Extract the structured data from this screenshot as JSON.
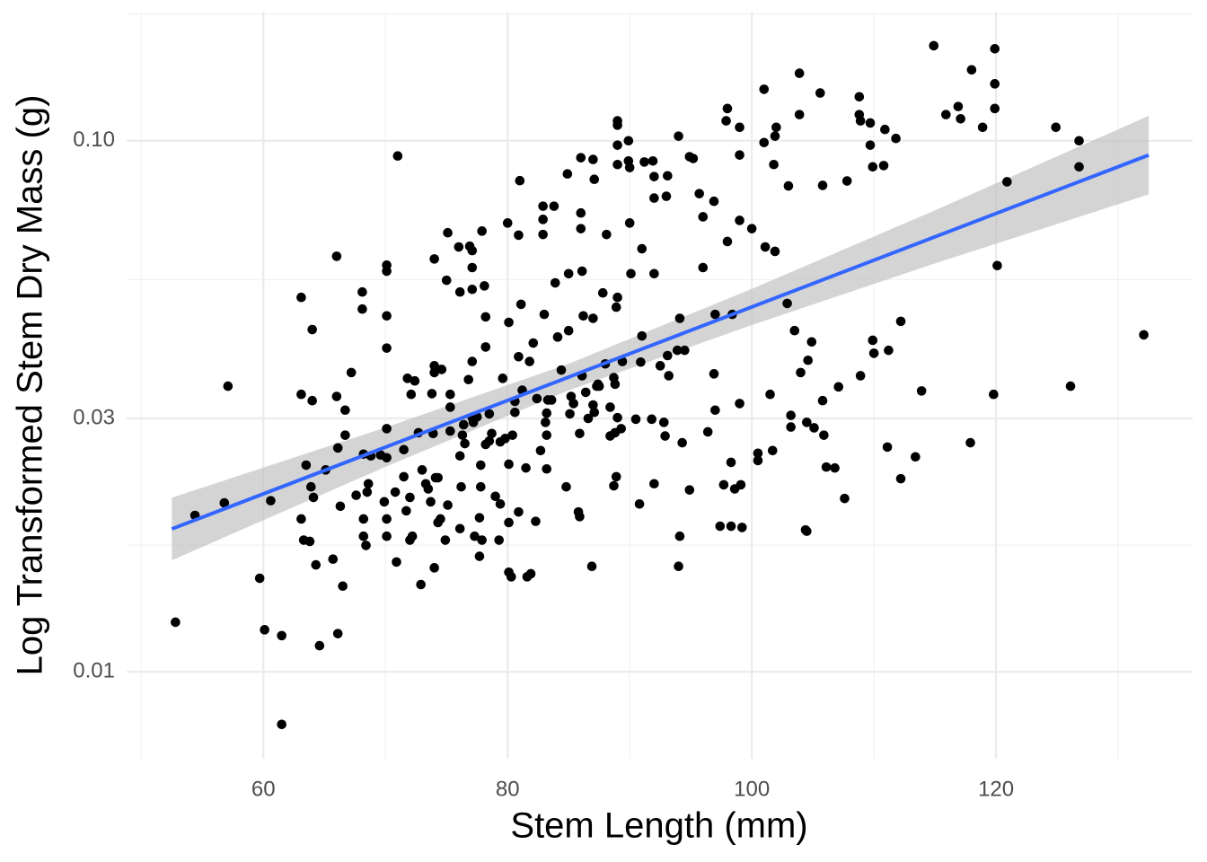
{
  "chart_data": {
    "type": "scatter",
    "xlabel": "Stem Length (mm)",
    "ylabel": "Log Transformed Stem Dry Mass (g)",
    "xlim": [
      48.8,
      136.1
    ],
    "ylim": [
      0.00686,
      0.175
    ],
    "ylog": true,
    "xticks": [
      60,
      80,
      100,
      120
    ],
    "yticks": [
      {
        "value": 0.1,
        "label": "0.10"
      },
      0.03,
      0.01
    ],
    "xminor": [
      50,
      70,
      90,
      110,
      130
    ],
    "yminor": [
      0.01732,
      0.05477,
      0.1732
    ],
    "grid": true,
    "color": "#000000",
    "x": [
      52.8,
      54.4,
      56.8,
      57.1,
      59.7,
      60.1,
      60.6,
      61.5,
      61.5,
      63.1,
      63.1,
      63.1,
      63.3,
      63.5,
      63.8,
      63.9,
      64.0,
      64.0,
      64.1,
      64.3,
      64.6,
      65.1,
      65.7,
      66.0,
      66.0,
      66.1,
      66.1,
      66.3,
      66.5,
      66.7,
      66.7,
      67.2,
      67.6,
      68.1,
      68.1,
      68.2,
      68.2,
      68.2,
      68.4,
      68.5,
      68.6,
      68.8,
      69.6,
      69.9,
      70.1,
      70.1,
      70.1,
      70.1,
      70.1,
      70.1,
      70.1,
      70.1,
      70.8,
      70.9,
      71.0,
      71.5,
      71.5,
      71.7,
      71.8,
      72.0,
      72.0,
      72.1,
      72.2,
      72.4,
      72.7,
      72.9,
      73.0,
      73.3,
      73.5,
      73.7,
      73.8,
      73.9,
      74.0,
      74.0,
      74.0,
      74.0,
      74.1,
      74.3,
      74.3,
      74.5,
      74.6,
      74.9,
      75.0,
      75.1,
      75.1,
      75.3,
      75.3,
      75.3,
      76.0,
      76.1,
      76.1,
      76.1,
      76.2,
      76.3,
      76.4,
      76.5,
      76.8,
      76.9,
      77.1,
      77.1,
      77.1,
      77.1,
      77.1,
      77.2,
      77.3,
      77.5,
      77.7,
      77.7,
      77.8,
      77.8,
      77.9,
      77.9,
      78.1,
      78.2,
      78.2,
      78.2,
      78.5,
      78.5,
      78.7,
      79.0,
      79.3,
      79.4,
      79.4,
      79.6,
      79.8,
      80.0,
      80.1,
      80.1,
      80.1,
      80.1,
      80.3,
      80.4,
      80.6,
      80.6,
      80.9,
      80.9,
      80.9,
      81.0,
      81.1,
      81.2,
      81.5,
      81.6,
      81.8,
      81.9,
      82.1,
      82.3,
      82.4,
      82.7,
      82.9,
      82.9,
      82.9,
      83.0,
      83.1,
      83.2,
      83.2,
      83.2,
      83.3,
      83.6,
      83.8,
      83.9,
      84.1,
      84.4,
      84.8,
      84.9,
      85.0,
      85.0,
      85.1,
      85.2,
      85.4,
      85.8,
      85.9,
      85.9,
      86.0,
      86.0,
      86.0,
      86.1,
      86.1,
      86.2,
      86.4,
      86.6,
      86.9,
      87.0,
      87.0,
      87.0,
      87.1,
      87.1,
      87.3,
      87.4,
      87.5,
      87.8,
      88.0,
      88.1,
      88.4,
      88.4,
      88.7,
      88.7,
      88.8,
      88.8,
      88.9,
      88.9,
      89.0,
      89.0,
      89.0,
      89.0,
      89.0,
      89.0,
      89.3,
      89.4,
      89.9,
      89.9,
      90.0,
      90.0,
      90.1,
      90.5,
      90.8,
      90.9,
      91.0,
      91.0,
      91.2,
      91.8,
      91.9,
      92.0,
      92.0,
      92.0,
      92.0,
      92.5,
      92.8,
      92.9,
      93.0,
      93.1,
      93.1,
      93.2,
      93.9,
      94.0,
      94.0,
      94.1,
      94.1,
      94.3,
      94.5,
      94.9,
      94.9,
      95.2,
      95.7,
      96.0,
      96.0,
      96.4,
      96.9,
      96.9,
      97.0,
      97.0,
      97.4,
      97.7,
      97.9,
      98.0,
      98.0,
      98.3,
      98.3,
      98.4,
      98.6,
      99.0,
      99.0,
      99.0,
      99.0,
      99.1,
      99.2,
      100.0,
      100.5,
      100.5,
      101.0,
      101.0,
      101.1,
      101.5,
      101.7,
      101.8,
      101.9,
      101.9,
      102.0,
      102.9,
      103.0,
      103.2,
      103.2,
      103.5,
      103.9,
      103.9,
      104.0,
      104.4,
      104.5,
      104.5,
      104.6,
      104.9,
      105.1,
      105.6,
      105.8,
      105.8,
      105.9,
      106.1,
      106.8,
      107.1,
      107.6,
      107.8,
      108.8,
      108.8,
      108.9,
      108.9,
      109.7,
      109.7,
      109.9,
      109.9,
      110.0,
      110.8,
      110.9,
      111.1,
      111.2,
      111.8,
      112.2,
      112.2,
      113.4,
      113.9,
      114.9,
      115.9,
      116.9,
      117.1,
      117.9,
      118.0,
      118.9,
      119.8,
      119.9,
      119.9,
      119.9,
      120.1,
      120.9,
      124.9,
      126.1,
      126.8,
      126.8,
      132.1
    ],
    "values": [
      0.0124,
      0.0197,
      0.0208,
      0.0345,
      0.015,
      0.012,
      0.021,
      0.0117,
      0.00796,
      0.0507,
      0.0333,
      0.0194,
      0.0177,
      0.0245,
      0.0176,
      0.0223,
      0.0324,
      0.0441,
      0.0213,
      0.0159,
      0.0112,
      0.024,
      0.0163,
      0.0606,
      0.033,
      0.0118,
      0.0264,
      0.0205,
      0.0145,
      0.0311,
      0.0279,
      0.0366,
      0.0215,
      0.0519,
      0.0482,
      0.0194,
      0.018,
      0.0257,
      0.0173,
      0.0218,
      0.0226,
      0.0255,
      0.0256,
      0.0209,
      0.0583,
      0.0568,
      0.0468,
      0.0407,
      0.0287,
      0.0253,
      0.0194,
      0.018,
      0.0218,
      0.0161,
      0.0936,
      0.0233,
      0.0262,
      0.0201,
      0.0357,
      0.0213,
      0.0177,
      0.0333,
      0.018,
      0.0353,
      0.0282,
      0.0146,
      0.024,
      0.0226,
      0.0221,
      0.0209,
      0.0334,
      0.0281,
      0.0157,
      0.0599,
      0.0366,
      0.0377,
      0.0232,
      0.0191,
      0.0232,
      0.0194,
      0.0371,
      0.0177,
      0.0546,
      0.0671,
      0.0206,
      0.0284,
      0.0315,
      0.0333,
      0.0631,
      0.0519,
      0.0255,
      0.0186,
      0.0223,
      0.0279,
      0.0292,
      0.0269,
      0.0355,
      0.0633,
      0.0621,
      0.0577,
      0.0525,
      0.0384,
      0.0301,
      0.0295,
      0.018,
      0.0302,
      0.0195,
      0.0165,
      0.0245,
      0.0223,
      0.0177,
      0.0676,
      0.0533,
      0.0466,
      0.0409,
      0.0268,
      0.0306,
      0.0272,
      0.0281,
      0.0214,
      0.0177,
      0.0271,
      0.0207,
      0.0357,
      0.0275,
      0.07,
      0.0455,
      0.0246,
      0.0154,
      0.0191,
      0.0151,
      0.0279,
      0.0308,
      0.0323,
      0.0392,
      0.02,
      0.0664,
      0.0841,
      0.0492,
      0.0339,
      0.0242,
      0.0151,
      0.0384,
      0.0153,
      0.0416,
      0.0192,
      0.0327,
      0.0261,
      0.0711,
      0.0666,
      0.0753,
      0.0471,
      0.0295,
      0.0307,
      0.0241,
      0.0279,
      0.0325,
      0.0325,
      0.0753,
      0.054,
      0.0427,
      0.037,
      0.0223,
      0.0866,
      0.0439,
      0.0562,
      0.0306,
      0.033,
      0.032,
      0.02,
      0.0281,
      0.0196,
      0.0929,
      0.0731,
      0.0683,
      0.0568,
      0.0361,
      0.0468,
      0.0336,
      0.03,
      0.0158,
      0.0922,
      0.0463,
      0.0318,
      0.0846,
      0.0308,
      0.0345,
      0.0348,
      0.0345,
      0.0517,
      0.038,
      0.0666,
      0.0315,
      0.0278,
      0.0224,
      0.0358,
      0.0282,
      0.0348,
      0.0233,
      0.0486,
      0.0507,
      0.0902,
      0.109,
      0.0981,
      0.107,
      0.0301,
      0.0287,
      0.0384,
      0.1,
      0.0916,
      0.089,
      0.07,
      0.0562,
      0.0299,
      0.0207,
      0.0383,
      0.0626,
      0.0429,
      0.0912,
      0.0299,
      0.0916,
      0.0856,
      0.078,
      0.0562,
      0.0226,
      0.0377,
      0.0295,
      0.0278,
      0.0786,
      0.0859,
      0.0394,
      0.0361,
      0.0403,
      0.102,
      0.0158,
      0.018,
      0.0463,
      0.027,
      0.0403,
      0.022,
      0.0933,
      0.0926,
      0.0795,
      0.0577,
      0.0719,
      0.0283,
      0.0769,
      0.0364,
      0.0311,
      0.0471,
      0.0188,
      0.0225,
      0.109,
      0.115,
      0.0646,
      0.0248,
      0.0188,
      0.0471,
      0.0221,
      0.106,
      0.094,
      0.0708,
      0.032,
      0.0225,
      0.0187,
      0.0683,
      0.0258,
      0.025,
      0.125,
      0.0992,
      0.0631,
      0.0333,
      0.0261,
      0.0902,
      0.102,
      0.0619,
      0.106,
      0.0494,
      0.0822,
      0.0289,
      0.0304,
      0.0439,
      0.134,
      0.112,
      0.0366,
      0.0185,
      0.0295,
      0.0184,
      0.0386,
      0.0418,
      0.0288,
      0.123,
      0.0324,
      0.0824,
      0.0279,
      0.0243,
      0.0242,
      0.0344,
      0.0212,
      0.084,
      0.121,
      0.112,
      0.109,
      0.0361,
      0.108,
      0.0981,
      0.0893,
      0.0421,
      0.0398,
      0.0898,
      0.105,
      0.0265,
      0.0403,
      0.101,
      0.0231,
      0.0457,
      0.0254,
      0.0338,
      0.151,
      0.112,
      0.116,
      0.11,
      0.027,
      0.136,
      0.106,
      0.0333,
      0.149,
      0.128,
      0.115,
      0.0582,
      0.0837,
      0.106,
      0.0345,
      0.1,
      0.0893,
      0.0431
    ],
    "fit": {
      "color": "#3366ff",
      "band_color": "#bdbdbd",
      "x": [
        52.5,
        70,
        85,
        100,
        115,
        132.5
      ],
      "y": [
        0.01858,
        0.02649,
        0.03589,
        0.04864,
        0.06592,
        0.09397
      ],
      "lower": [
        0.01622,
        0.02432,
        0.03388,
        0.04498,
        0.05875,
        0.07925
      ],
      "upper": [
        0.02128,
        0.02884,
        0.03802,
        0.0526,
        0.07396,
        0.1114
      ]
    }
  }
}
